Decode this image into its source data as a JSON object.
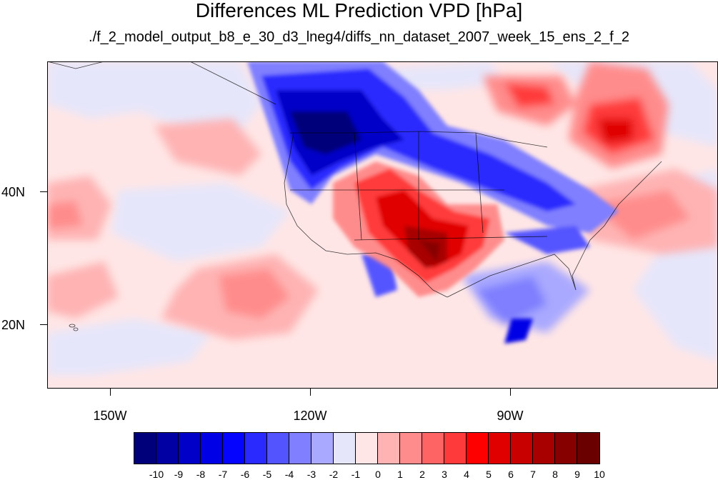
{
  "title": "Differences ML Prediction VPD [hPa]",
  "subtitle": "./f_2_model_output_b8_e_30_d3_lneg4/diffs_nn_dataset_2007_week_15_ens_2_f_2",
  "axes": {
    "lat_labels": [
      "40N",
      "20N"
    ],
    "lon_labels": [
      "150W",
      "120W",
      "90W"
    ]
  },
  "colorbar": {
    "labels": [
      "-10",
      "-9",
      "-8",
      "-7",
      "-6",
      "-5",
      "-4",
      "-3",
      "-2",
      "-1",
      "0",
      "1",
      "2",
      "3",
      "4",
      "5",
      "6",
      "7",
      "8",
      "9",
      "10"
    ],
    "colors": [
      "#00007a",
      "#0000a3",
      "#0000c8",
      "#0000e6",
      "#0505ff",
      "#2a2aff",
      "#5454ff",
      "#7f7fff",
      "#a9a9ff",
      "#e6e6fa",
      "#ffe6e6",
      "#ffb3b3",
      "#ff8c8c",
      "#ff6464",
      "#ff3a3a",
      "#ff0000",
      "#e00000",
      "#c80000",
      "#a80000",
      "#870000",
      "#6a0000"
    ]
  }
}
